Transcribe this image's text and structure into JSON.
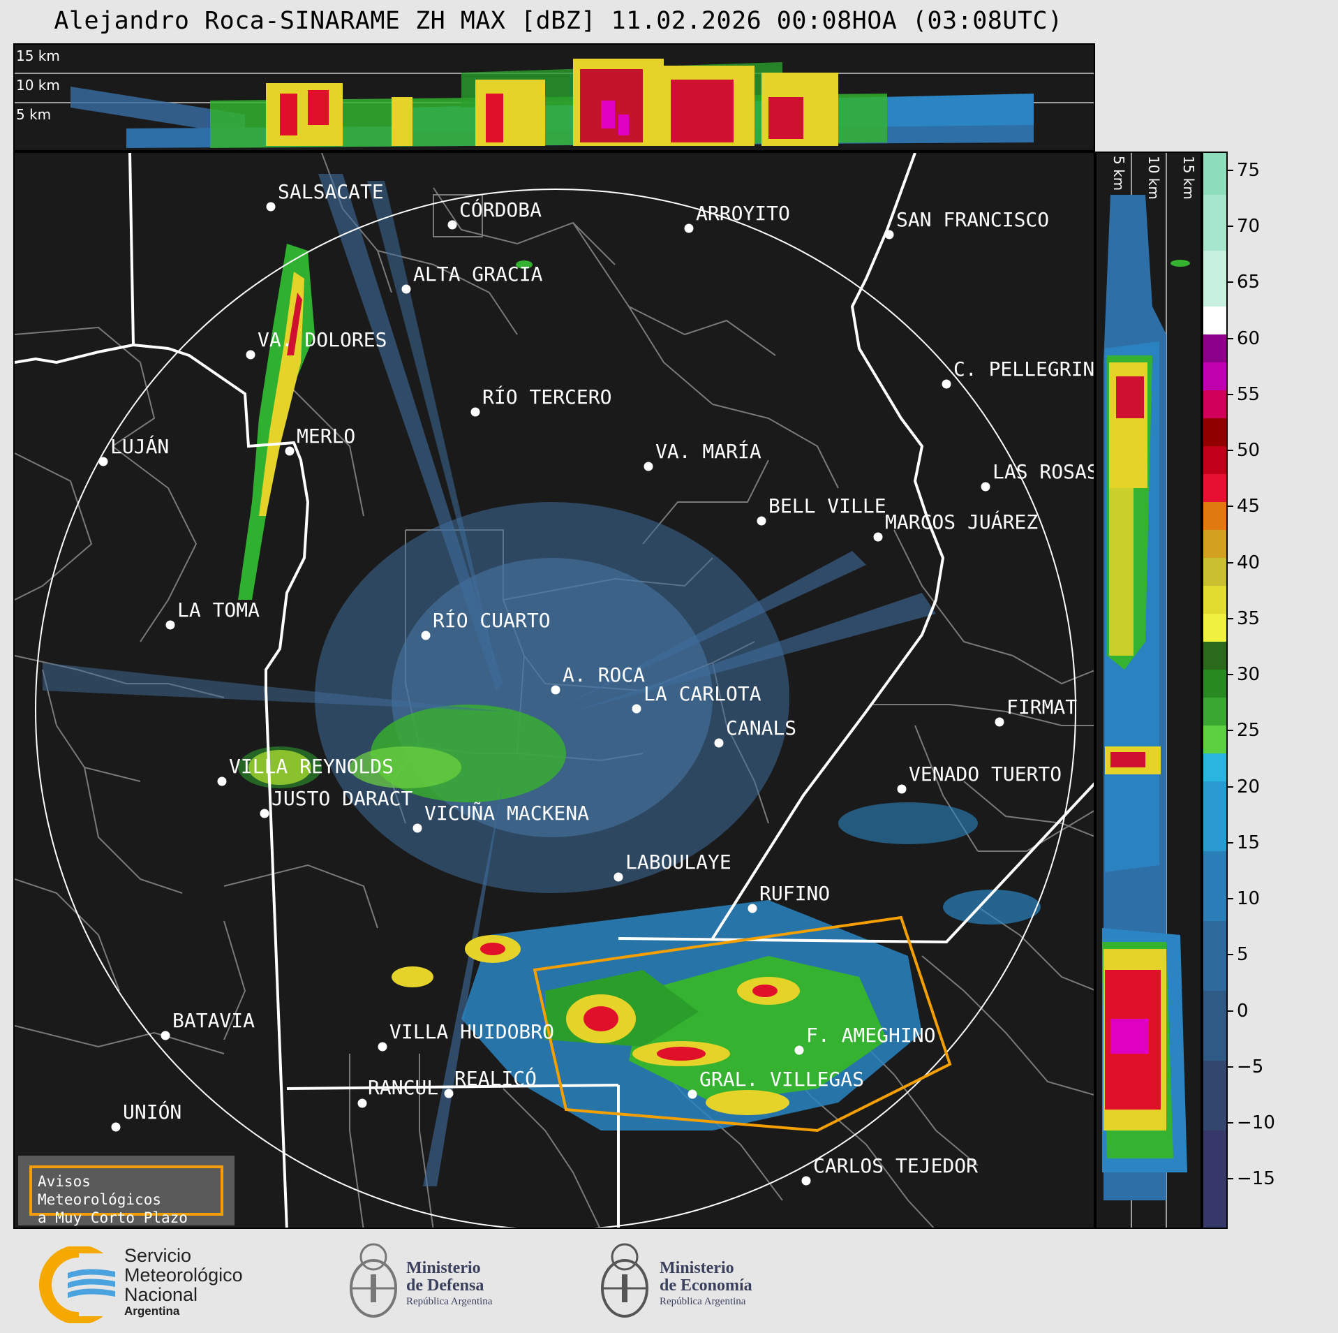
{
  "title": "Alejandro Roca-SINARAME ZH MAX [dBZ] 11.02.2026 00:08HOA (03:08UTC)",
  "top_strip": {
    "labels": [
      "15 km",
      "10 km",
      "5 km"
    ]
  },
  "side_strip": {
    "labels": [
      "5 km",
      "10 km",
      "15 km"
    ]
  },
  "colorbar": {
    "ticks": [
      "75",
      "70",
      "65",
      "60",
      "55",
      "50",
      "45",
      "40",
      "35",
      "30",
      "25",
      "20",
      "15",
      "10",
      "5",
      "0",
      "−5",
      "−10",
      "−15"
    ]
  },
  "cities": [
    {
      "name": "SALSACATE"
    },
    {
      "name": "CÓRDOBA"
    },
    {
      "name": "ARROYITO"
    },
    {
      "name": "SAN FRANCISCO"
    },
    {
      "name": "ALTA GRACIA"
    },
    {
      "name": "VA. DOLORES"
    },
    {
      "name": "C. PELLEGRINI"
    },
    {
      "name": "RÍO TERCERO"
    },
    {
      "name": "LUJÁN"
    },
    {
      "name": "MERLO"
    },
    {
      "name": "VA. MARÍA"
    },
    {
      "name": "LAS ROSAS"
    },
    {
      "name": "BELL VILLE"
    },
    {
      "name": "MARCOS JUÁREZ"
    },
    {
      "name": "LA TOMA"
    },
    {
      "name": "RÍO CUARTO"
    },
    {
      "name": "A. ROCA"
    },
    {
      "name": "LA CARLOTA"
    },
    {
      "name": "FIRMAT"
    },
    {
      "name": "CANALS"
    },
    {
      "name": "VILLA REYNOLDS"
    },
    {
      "name": "VENADO TUERTO"
    },
    {
      "name": "JUSTO DARACT"
    },
    {
      "name": "VICUÑA MACKENA"
    },
    {
      "name": "LABOULAYE"
    },
    {
      "name": "RUFINO"
    },
    {
      "name": "BATAVIA"
    },
    {
      "name": "VILLA HUIDOBRO"
    },
    {
      "name": "F. AMEGHINO"
    },
    {
      "name": "RANCUL"
    },
    {
      "name": "REALICÓ"
    },
    {
      "name": "GRAL. VILLEGAS"
    },
    {
      "name": "UNIÓN"
    },
    {
      "name": "CARLOS TEJEDOR"
    }
  ],
  "avisos": {
    "line1": "Avisos Meteorológicos",
    "line2": "a Muy Corto Plazo"
  },
  "footer": {
    "smn": {
      "line1": "Servicio",
      "line2": "Meteorológico",
      "line3": "Nacional",
      "line4": "Argentina"
    },
    "defensa": {
      "line1": "Ministerio",
      "line2": "de Defensa",
      "line3": "República Argentina"
    },
    "economia": {
      "line1": "Ministerio",
      "line2": "de Economía",
      "line3": "República Argentina"
    }
  },
  "colors": {
    "warning_polygon": "#f5a000",
    "range_ring": "#ffffff",
    "province_border": "#ffffff",
    "department_border": "#808080",
    "background": "#1a1a1a"
  }
}
